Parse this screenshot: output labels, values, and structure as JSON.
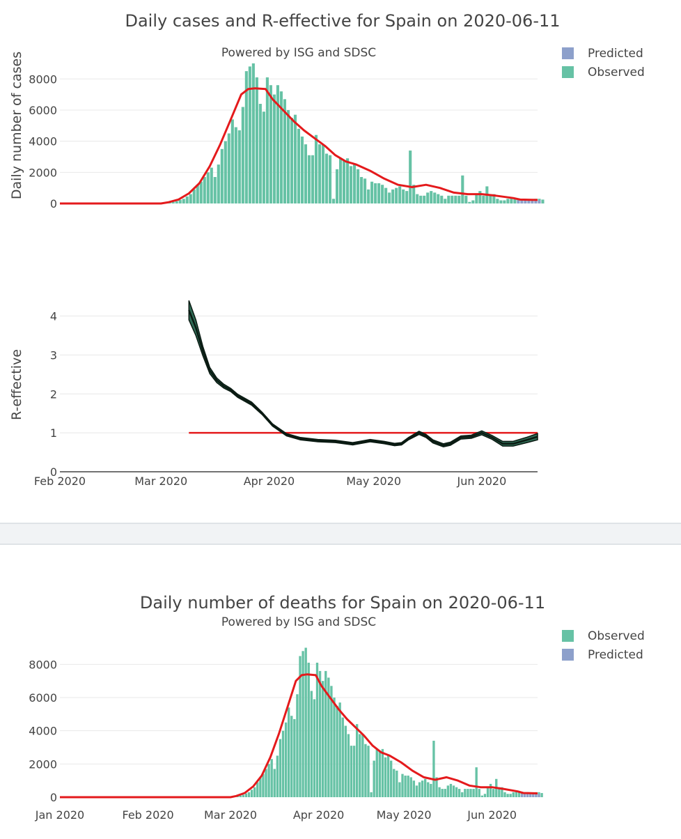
{
  "colors": {
    "observed": "#66c2a5",
    "predicted": "#8da0cb",
    "trend": "#e41a1c",
    "reff": "#0a1a12",
    "reff_band": "#2f6b55"
  },
  "chart_data": [
    {
      "type": "bar",
      "title": "Daily cases and R-effective for Spain on 2020-06-11",
      "subtitle": "Powered by ISG and SDSC",
      "ylabel": "Daily number of cases",
      "ylim": [
        0,
        9400
      ],
      "yticks": [
        0,
        2000,
        4000,
        6000,
        8000
      ],
      "legend": {
        "placement": "top-right",
        "entries": [
          "Predicted",
          "Observed"
        ]
      },
      "x_start": "2020-02-01",
      "x_end": "2020-06-17",
      "series": [
        {
          "name": "Observed",
          "start": "2020-03-02",
          "values": [
            70,
            70,
            100,
            150,
            230,
            300,
            450,
            600,
            900,
            1200,
            1400,
            1700,
            2000,
            2300,
            1700,
            2500,
            3500,
            4000,
            4500,
            5400,
            4900,
            4700,
            6200,
            8500,
            8800,
            9000,
            8100,
            6400,
            5900,
            8100,
            7600,
            7000,
            7600,
            7200,
            6700,
            6000,
            5500,
            5700,
            4800,
            4300,
            3800,
            3100,
            3100,
            4400,
            3800,
            3800,
            3200,
            3100,
            300,
            2200,
            2900,
            2800,
            2900,
            2400,
            2500,
            2200,
            1700,
            1600,
            900,
            1400,
            1300,
            1300,
            1200,
            1000,
            700,
            900,
            1000,
            1100,
            900,
            800,
            3400,
            1200,
            600,
            500,
            500,
            700,
            800,
            700,
            600,
            500,
            300,
            500,
            500,
            500,
            500,
            1800,
            500,
            100,
            200,
            600,
            800,
            500,
            1100,
            600,
            600,
            300,
            200,
            200,
            300,
            350,
            350,
            300,
            300,
            300,
            250,
            200,
            300,
            300,
            250
          ]
        },
        {
          "name": "Predicted",
          "start": "2020-06-11",
          "values": [
            200,
            200,
            200,
            200,
            200,
            200,
            200
          ]
        }
      ],
      "trend": {
        "name": "Trend",
        "x": [
          "2020-02-01",
          "2020-02-15",
          "2020-03-01",
          "2020-03-03",
          "2020-03-06",
          "2020-03-09",
          "2020-03-12",
          "2020-03-15",
          "2020-03-18",
          "2020-03-21",
          "2020-03-24",
          "2020-03-26",
          "2020-03-28",
          "2020-03-31",
          "2020-04-02",
          "2020-04-05",
          "2020-04-08",
          "2020-04-11",
          "2020-04-14",
          "2020-04-17",
          "2020-04-20",
          "2020-04-23",
          "2020-04-26",
          "2020-04-30",
          "2020-05-04",
          "2020-05-08",
          "2020-05-12",
          "2020-05-16",
          "2020-05-20",
          "2020-05-24",
          "2020-05-28",
          "2020-06-01",
          "2020-06-05",
          "2020-06-10",
          "2020-06-12",
          "2020-06-17"
        ],
        "y": [
          0,
          0,
          0,
          70,
          250,
          650,
          1300,
          2400,
          3800,
          5400,
          7000,
          7350,
          7400,
          7350,
          6700,
          6000,
          5300,
          4700,
          4200,
          3700,
          3100,
          2700,
          2500,
          2100,
          1600,
          1200,
          1050,
          1200,
          1000,
          700,
          600,
          600,
          500,
          350,
          250,
          230
        ]
      }
    },
    {
      "type": "line",
      "ylabel": "R-effective",
      "ylim": [
        0,
        4.6
      ],
      "yticks": [
        0,
        1,
        2,
        3,
        4
      ],
      "xticks": [
        "Feb 2020",
        "Mar 2020",
        "Apr 2020",
        "May 2020",
        "Jun 2020"
      ],
      "threshold": {
        "value": 1,
        "x_start": "2020-03-09",
        "x_end": "2020-06-17"
      },
      "series": [
        {
          "name": "R-effective",
          "x": [
            "2020-03-09",
            "2020-03-11",
            "2020-03-13",
            "2020-03-15",
            "2020-03-17",
            "2020-03-19",
            "2020-03-21",
            "2020-03-23",
            "2020-03-25",
            "2020-03-27",
            "2020-03-30",
            "2020-04-02",
            "2020-04-06",
            "2020-04-10",
            "2020-04-15",
            "2020-04-20",
            "2020-04-25",
            "2020-04-30",
            "2020-05-04",
            "2020-05-07",
            "2020-05-09",
            "2020-05-11",
            "2020-05-14",
            "2020-05-16",
            "2020-05-18",
            "2020-05-21",
            "2020-05-23",
            "2020-05-26",
            "2020-05-29",
            "2020-06-01",
            "2020-06-04",
            "2020-06-07",
            "2020-06-10",
            "2020-06-14",
            "2020-06-17"
          ],
          "y": [
            4.15,
            3.7,
            3.1,
            2.6,
            2.35,
            2.2,
            2.1,
            1.95,
            1.85,
            1.75,
            1.5,
            1.2,
            0.95,
            0.85,
            0.8,
            0.78,
            0.72,
            0.8,
            0.75,
            0.7,
            0.72,
            0.85,
            1.0,
            0.92,
            0.78,
            0.68,
            0.72,
            0.88,
            0.9,
            1.0,
            0.88,
            0.72,
            0.72,
            0.82,
            0.9
          ],
          "band": [
            0.25,
            0.2,
            0.12,
            0.08,
            0.06,
            0.05,
            0.04,
            0.04,
            0.04,
            0.04,
            0.03,
            0.03,
            0.03,
            0.03,
            0.03,
            0.03,
            0.03,
            0.03,
            0.03,
            0.03,
            0.03,
            0.03,
            0.04,
            0.04,
            0.04,
            0.04,
            0.04,
            0.04,
            0.04,
            0.05,
            0.05,
            0.06,
            0.06,
            0.07,
            0.08
          ]
        }
      ]
    },
    {
      "type": "bar",
      "title": "Daily number of deaths for Spain on 2020-06-11",
      "subtitle": "Powered by ISG and SDSC",
      "ylabel": "",
      "ylim": [
        0,
        9400
      ],
      "yticks": [
        0,
        2000,
        4000,
        6000,
        8000
      ],
      "xticks": [
        "Jan 2020",
        "Feb 2020",
        "Mar 2020",
        "Apr 2020",
        "May 2020",
        "Jun 2020"
      ],
      "legend": {
        "placement": "top-right",
        "entries": [
          "Observed",
          "Predicted"
        ]
      },
      "x_start": "2020-01-01",
      "x_end": "2020-06-17",
      "series": [
        {
          "name": "Observed",
          "start": "2020-03-02",
          "values": [
            70,
            70,
            100,
            150,
            230,
            300,
            450,
            600,
            900,
            1200,
            1400,
            1700,
            2000,
            2300,
            1700,
            2500,
            3500,
            4000,
            4500,
            5400,
            4900,
            4700,
            6200,
            8500,
            8800,
            9000,
            8100,
            6400,
            5900,
            8100,
            7600,
            7000,
            7600,
            7200,
            6700,
            6000,
            5500,
            5700,
            4800,
            4300,
            3800,
            3100,
            3100,
            4400,
            3800,
            3800,
            3200,
            3100,
            300,
            2200,
            2900,
            2800,
            2900,
            2400,
            2500,
            2200,
            1700,
            1600,
            900,
            1400,
            1300,
            1300,
            1200,
            1000,
            700,
            900,
            1000,
            1100,
            900,
            800,
            3400,
            1200,
            600,
            500,
            500,
            700,
            800,
            700,
            600,
            500,
            300,
            500,
            500,
            500,
            500,
            1800,
            500,
            100,
            200,
            600,
            800,
            500,
            1100,
            600,
            600,
            300,
            200,
            200,
            300,
            350,
            350,
            300,
            300,
            300,
            250,
            200,
            300,
            300,
            250
          ]
        },
        {
          "name": "Predicted",
          "start": "2020-06-11",
          "values": [
            200,
            200,
            200,
            200,
            200,
            200,
            200
          ]
        }
      ],
      "trend": {
        "name": "Trend",
        "x": [
          "2020-01-01",
          "2020-02-15",
          "2020-03-01",
          "2020-03-03",
          "2020-03-06",
          "2020-03-09",
          "2020-03-12",
          "2020-03-15",
          "2020-03-18",
          "2020-03-21",
          "2020-03-24",
          "2020-03-26",
          "2020-03-28",
          "2020-03-31",
          "2020-04-02",
          "2020-04-05",
          "2020-04-08",
          "2020-04-11",
          "2020-04-14",
          "2020-04-17",
          "2020-04-20",
          "2020-04-23",
          "2020-04-26",
          "2020-04-30",
          "2020-05-04",
          "2020-05-08",
          "2020-05-12",
          "2020-05-16",
          "2020-05-20",
          "2020-05-24",
          "2020-05-28",
          "2020-06-01",
          "2020-06-05",
          "2020-06-10",
          "2020-06-12",
          "2020-06-17"
        ],
        "y": [
          0,
          0,
          0,
          70,
          250,
          650,
          1300,
          2400,
          3800,
          5400,
          7000,
          7350,
          7400,
          7350,
          6700,
          6000,
          5300,
          4700,
          4200,
          3700,
          3100,
          2700,
          2500,
          2100,
          1600,
          1200,
          1050,
          1200,
          1000,
          700,
          600,
          600,
          500,
          350,
          250,
          230
        ]
      }
    }
  ]
}
